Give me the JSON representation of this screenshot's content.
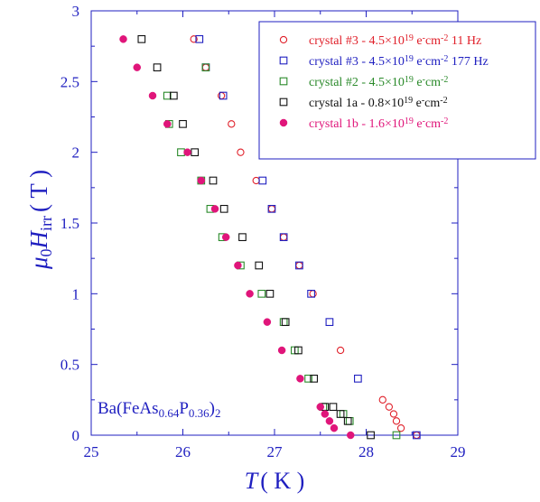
{
  "chart_data": {
    "type": "scatter",
    "xlabel": {
      "main": "T",
      "unit": "( K )"
    },
    "ylabel": {
      "mu": "μ",
      "sub0": "0",
      "H": "H",
      "sub": "irr",
      "unit": "( T )"
    },
    "xlim": [
      25,
      29
    ],
    "ylim": [
      0,
      3
    ],
    "x_ticks": [
      "25",
      "26",
      "27",
      "28",
      "29"
    ],
    "y_ticks": [
      "0",
      "0.5",
      "1",
      "1.5",
      "2",
      "2.5",
      "3"
    ],
    "annotation": {
      "pre": "Ba(FeAs",
      "s1": "0.64",
      "mid": "P",
      "s2": "0.36",
      "post": ")",
      "s3": "2"
    },
    "series": [
      {
        "name": "crystal #3 - 4.5×10¹⁹ e⁻cm⁻² 11 Hz",
        "legend": {
          "a": "crystal #3 -  4.5×10",
          "e1": "19",
          "b": " e",
          "e2": "-",
          "c": "cm",
          "e3": "-2",
          "d": " 11 Hz"
        },
        "color": "#e0202a",
        "marker": "circle-open",
        "points": [
          [
            28.55,
            0
          ],
          [
            28.38,
            0.05
          ],
          [
            28.33,
            0.1
          ],
          [
            28.3,
            0.15
          ],
          [
            28.25,
            0.2
          ],
          [
            28.18,
            0.25
          ],
          [
            27.72,
            0.6
          ],
          [
            27.42,
            1.0
          ],
          [
            27.27,
            1.2
          ],
          [
            27.1,
            1.4
          ],
          [
            26.97,
            1.6
          ],
          [
            26.8,
            1.8
          ],
          [
            26.63,
            2.0
          ],
          [
            26.53,
            2.2
          ],
          [
            26.42,
            2.4
          ],
          [
            26.25,
            2.6
          ],
          [
            26.12,
            2.8
          ]
        ]
      },
      {
        "name": "crystal #3 - 4.5×10¹⁹ e⁻cm⁻² 177 Hz",
        "legend": {
          "a": "crystal #3 - 4.5×10",
          "e1": "19",
          "b": " e",
          "e2": "-",
          "c": "cm",
          "e3": "-2",
          "d": "  177 Hz"
        },
        "color": "#1f1fc0",
        "marker": "square-open",
        "points": [
          [
            28.55,
            0
          ],
          [
            27.91,
            0.4
          ],
          [
            27.6,
            0.8
          ],
          [
            27.4,
            1.0
          ],
          [
            27.27,
            1.2
          ],
          [
            27.1,
            1.4
          ],
          [
            26.97,
            1.6
          ],
          [
            26.87,
            1.8
          ],
          [
            26.44,
            2.4
          ],
          [
            26.25,
            2.6
          ],
          [
            26.18,
            2.8
          ]
        ]
      },
      {
        "name": "crystal #2 - 4.5×10¹⁹ e⁻cm⁻²",
        "legend": {
          "a": "crystal #2 - 4.5×10",
          "e1": "19",
          "b": " e",
          "e2": "-",
          "c": "cm",
          "e3": "-2",
          "d": ""
        },
        "color": "#2a8a2a",
        "marker": "square-open",
        "points": [
          [
            28.33,
            0
          ],
          [
            27.82,
            0.1
          ],
          [
            27.75,
            0.15
          ],
          [
            27.53,
            0.2
          ],
          [
            27.37,
            0.4
          ],
          [
            27.22,
            0.6
          ],
          [
            27.1,
            0.8
          ],
          [
            26.86,
            1.0
          ],
          [
            26.63,
            1.2
          ],
          [
            26.43,
            1.4
          ],
          [
            26.3,
            1.6
          ],
          [
            26.2,
            1.8
          ],
          [
            25.98,
            2.0
          ],
          [
            25.85,
            2.2
          ],
          [
            25.83,
            2.4
          ],
          [
            26.25,
            2.6
          ]
        ]
      },
      {
        "name": "crystal 1a - 0.8×10¹⁹ e⁻cm⁻²",
        "legend": {
          "a": "crystal 1a - 0.8×10",
          "e1": "19",
          "b": " e",
          "e2": "-",
          "c": "cm",
          "e3": "-2",
          "d": ""
        },
        "color": "#111111",
        "marker": "square-open",
        "points": [
          [
            28.05,
            0
          ],
          [
            27.8,
            0.1
          ],
          [
            27.72,
            0.15
          ],
          [
            27.64,
            0.2
          ],
          [
            27.55,
            0.2
          ],
          [
            27.43,
            0.4
          ],
          [
            27.26,
            0.6
          ],
          [
            27.12,
            0.8
          ],
          [
            26.95,
            1.0
          ],
          [
            26.83,
            1.2
          ],
          [
            26.65,
            1.4
          ],
          [
            26.45,
            1.6
          ],
          [
            26.33,
            1.8
          ],
          [
            26.13,
            2.0
          ],
          [
            26.0,
            2.2
          ],
          [
            25.9,
            2.4
          ],
          [
            25.72,
            2.6
          ],
          [
            25.55,
            2.8
          ]
        ]
      },
      {
        "name": "crystal 1b - 1.6×10¹⁹ e⁻cm⁻²",
        "legend": {
          "a": "crystal 1b - 1.6×10",
          "e1": "19",
          "b": " e",
          "e2": "-",
          "c": "cm",
          "e3": "-2",
          "d": ""
        },
        "color": "#e0157a",
        "marker": "circle-filled",
        "points": [
          [
            27.83,
            0
          ],
          [
            27.65,
            0.05
          ],
          [
            27.6,
            0.1
          ],
          [
            27.55,
            0.15
          ],
          [
            27.5,
            0.2
          ],
          [
            27.28,
            0.4
          ],
          [
            27.08,
            0.6
          ],
          [
            26.92,
            0.8
          ],
          [
            26.73,
            1.0
          ],
          [
            26.6,
            1.2
          ],
          [
            26.47,
            1.4
          ],
          [
            26.35,
            1.6
          ],
          [
            26.2,
            1.8
          ],
          [
            26.05,
            2.0
          ],
          [
            25.83,
            2.2
          ],
          [
            25.67,
            2.4
          ],
          [
            25.5,
            2.6
          ],
          [
            25.35,
            2.8
          ]
        ]
      }
    ]
  }
}
